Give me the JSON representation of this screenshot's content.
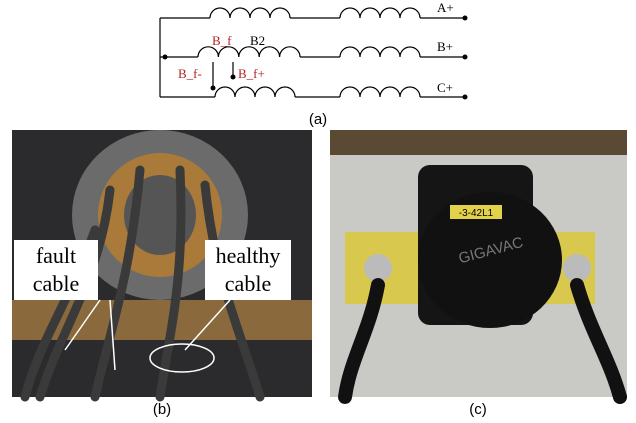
{
  "figure": {
    "panel_a": {
      "label": "(a)",
      "terminals": [
        "A+",
        "B+",
        "C+"
      ],
      "tap_fault": "B_f",
      "tap_coil": "B2",
      "tap_minus": "B_f-",
      "tap_plus": "B_f+"
    },
    "panel_b": {
      "label": "(b)",
      "fault_label": [
        "fault",
        "cable"
      ],
      "healthy_label": [
        "healthy",
        "cable"
      ]
    },
    "panel_c": {
      "label": "(c)",
      "brand": "GIGAVAC",
      "part": "-3-42L1"
    }
  }
}
